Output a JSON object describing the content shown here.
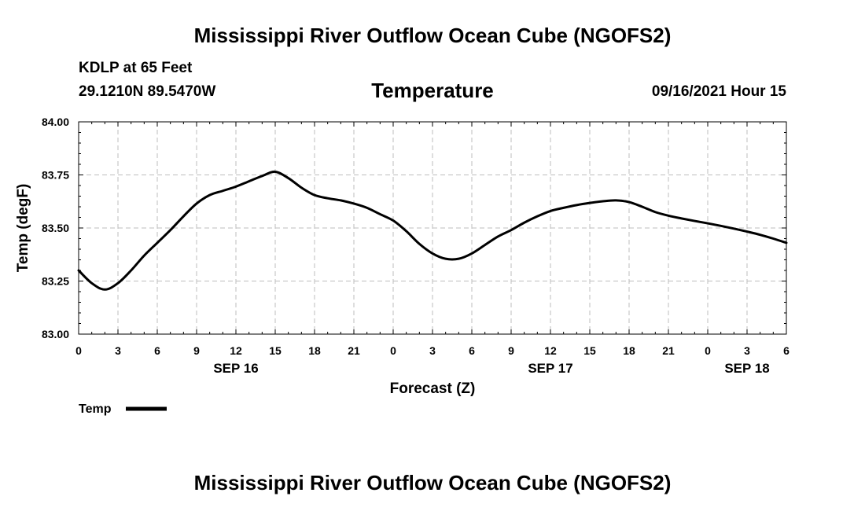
{
  "header": {
    "main_title": "Mississippi River Outflow Ocean Cube (NGOFS2)",
    "station": "KDLP at 65 Feet",
    "coords": "29.1210N  89.5470W",
    "variable": "Temperature",
    "datetime": "09/16/2021 Hour 15"
  },
  "footer": {
    "title": "Mississippi River Outflow Ocean Cube (NGOFS2)"
  },
  "chart_data": {
    "type": "line",
    "title": "Temperature",
    "xlabel": "Forecast (Z)",
    "ylabel": "Temp (degF)",
    "xlim": [
      0,
      54
    ],
    "ylim": [
      83.0,
      84.0
    ],
    "grid": true,
    "x_tick_values": [
      0,
      3,
      6,
      9,
      12,
      15,
      18,
      21,
      24,
      27,
      30,
      33,
      36,
      39,
      42,
      45,
      48,
      51,
      54
    ],
    "x_tick_labels": [
      "0",
      "3",
      "6",
      "9",
      "12",
      "15",
      "18",
      "21",
      "0",
      "3",
      "6",
      "9",
      "12",
      "15",
      "18",
      "21",
      "0",
      "3",
      "6"
    ],
    "day_labels": [
      {
        "x": 12,
        "label": "SEP 16"
      },
      {
        "x": 36,
        "label": "SEP 17"
      },
      {
        "x": 51,
        "label": "SEP 18"
      }
    ],
    "y_tick_values": [
      83.0,
      83.25,
      83.5,
      83.75,
      84.0
    ],
    "y_tick_labels": [
      "83.00",
      "83.25",
      "83.50",
      "83.75",
      "84.00"
    ],
    "legend": {
      "position": "bottom-left",
      "label": "Temp"
    },
    "series": [
      {
        "name": "Temp",
        "color": "#000000",
        "x": [
          0,
          1,
          2,
          3,
          4,
          5,
          6,
          7,
          8,
          9,
          10,
          11,
          12,
          13,
          14,
          15,
          16,
          17,
          18,
          19,
          20,
          21,
          22,
          23,
          24,
          25,
          26,
          27,
          28,
          29,
          30,
          31,
          32,
          33,
          34,
          35,
          36,
          37,
          38,
          39,
          40,
          41,
          42,
          43,
          44,
          45,
          46,
          47,
          48,
          49,
          50,
          51,
          52,
          53,
          54
        ],
        "y": [
          83.3,
          83.24,
          83.21,
          83.24,
          83.3,
          83.37,
          83.43,
          83.49,
          83.555,
          83.615,
          83.655,
          83.675,
          83.695,
          83.72,
          83.745,
          83.765,
          83.735,
          83.69,
          83.655,
          83.64,
          83.63,
          83.615,
          83.595,
          83.565,
          83.535,
          83.485,
          83.425,
          83.38,
          83.355,
          83.355,
          83.38,
          83.42,
          83.46,
          83.49,
          83.525,
          83.555,
          83.58,
          83.595,
          83.608,
          83.618,
          83.626,
          83.63,
          83.622,
          83.6,
          83.575,
          83.558,
          83.545,
          83.533,
          83.522,
          83.51,
          83.497,
          83.483,
          83.468,
          83.45,
          83.43
        ]
      }
    ]
  }
}
